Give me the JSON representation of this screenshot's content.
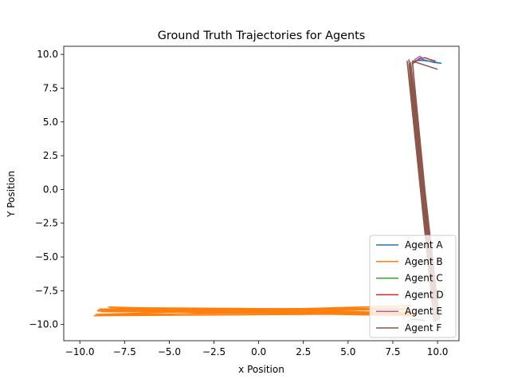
{
  "chart_data": {
    "type": "line",
    "title": "Ground Truth Trajectories for Agents",
    "xlabel": "x Position",
    "ylabel": "Y Position",
    "xlim": [
      -10.9,
      11.2
    ],
    "ylim": [
      -11.2,
      10.6
    ],
    "xticks": [
      -10.0,
      -7.5,
      -5.0,
      -2.5,
      0.0,
      2.5,
      5.0,
      7.5,
      10.0
    ],
    "yticks": [
      -10.0,
      -7.5,
      -5.0,
      -2.5,
      0.0,
      2.5,
      5.0,
      7.5,
      10.0
    ],
    "xtick_labels": [
      "−10.0",
      "−7.5",
      "−5.0",
      "−2.5",
      "0.0",
      "2.5",
      "5.0",
      "7.5",
      "10.0"
    ],
    "ytick_labels": [
      "−10.0",
      "−7.5",
      "−5.0",
      "−2.5",
      "0.0",
      "2.5",
      "5.0",
      "7.5",
      "10.0"
    ],
    "grid": false,
    "legend_position": "lower right",
    "series": [
      {
        "name": "Agent A",
        "color": "#1f77b4",
        "x": [
          8.6,
          9.2,
          9.8,
          10.2,
          9.5,
          8.9
        ],
        "y": [
          9.5,
          9.6,
          9.4,
          9.35,
          9.5,
          9.6
        ]
      },
      {
        "name": "Agent B",
        "color": "#ff7f0e",
        "x": [
          8.6,
          -9.1,
          8.7,
          -8.9,
          8.4,
          -8.6,
          8.8,
          -9.0,
          8.6,
          -8.3,
          8.9,
          -9.2,
          8.5,
          -8.8,
          8.7,
          -9.0,
          8.8,
          -8.4,
          8.6
        ],
        "y": [
          -8.6,
          -9.25,
          -9.1,
          -8.85,
          -8.8,
          -8.95,
          -9.3,
          -9.0,
          -8.9,
          -8.75,
          -9.2,
          -9.35,
          -8.85,
          -9.05,
          -9.1,
          -8.95,
          -9.35,
          -8.7,
          -9.3
        ]
      },
      {
        "name": "Agent C",
        "color": "#2ca02c",
        "x": [
          8.5,
          8.9,
          9.3
        ],
        "y": [
          -9.6,
          -9.65,
          -9.7
        ]
      },
      {
        "name": "Agent D",
        "color": "#d62728",
        "x": [
          8.6,
          9.0,
          9.3,
          9.6,
          9.9
        ],
        "y": [
          9.3,
          9.7,
          9.75,
          9.6,
          9.5
        ]
      },
      {
        "name": "Agent E",
        "color": "#9467bd",
        "x": [
          8.7,
          9.0,
          9.2,
          9.1
        ],
        "y": [
          9.6,
          9.85,
          9.7,
          9.6
        ]
      },
      {
        "name": "Agent F",
        "color": "#8c564b",
        "x": [
          8.4,
          10.0,
          8.3,
          10.1,
          8.5,
          9.9,
          8.4,
          10.1,
          8.5,
          9.8,
          8.3,
          10.0,
          8.6,
          9.9,
          8.4,
          10.1,
          8.5,
          9.9,
          8.4,
          10.0,
          8.5,
          9.8,
          8.4,
          10.1,
          8.5,
          9.9,
          8.6,
          10.0
        ],
        "y": [
          9.3,
          -9.7,
          9.5,
          -9.6,
          9.4,
          -9.8,
          9.6,
          -9.5,
          9.3,
          -9.7,
          9.5,
          -9.6,
          9.4,
          -9.8,
          9.6,
          -9.5,
          9.3,
          -9.7,
          9.5,
          -9.6,
          9.4,
          -9.8,
          9.6,
          -9.5,
          9.3,
          -9.7,
          9.5,
          8.9
        ]
      }
    ]
  }
}
